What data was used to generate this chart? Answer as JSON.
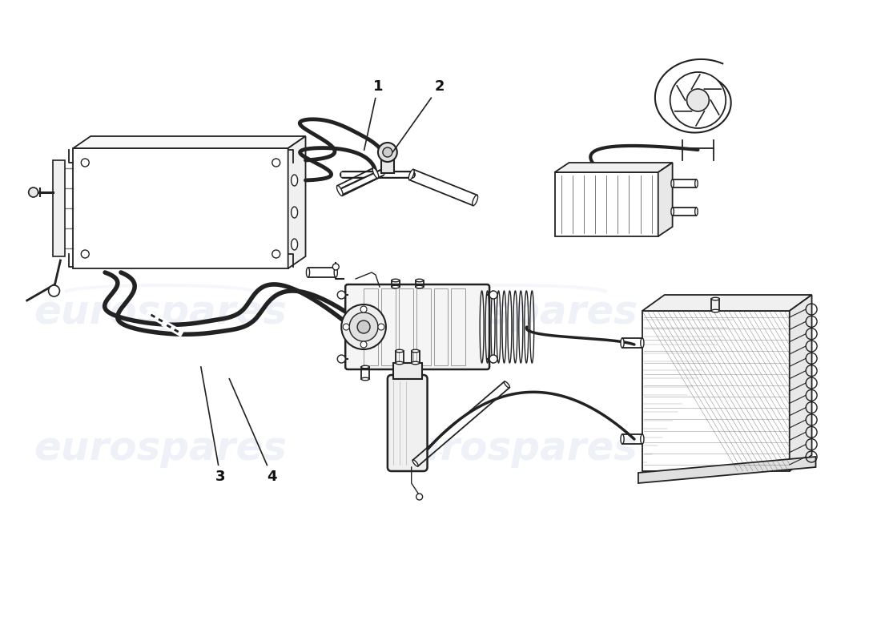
{
  "background_color": "#ffffff",
  "watermark_text": "eurospares",
  "watermark_color": "#c8d4e8",
  "line_color": "#222222",
  "label_color": "#111111"
}
